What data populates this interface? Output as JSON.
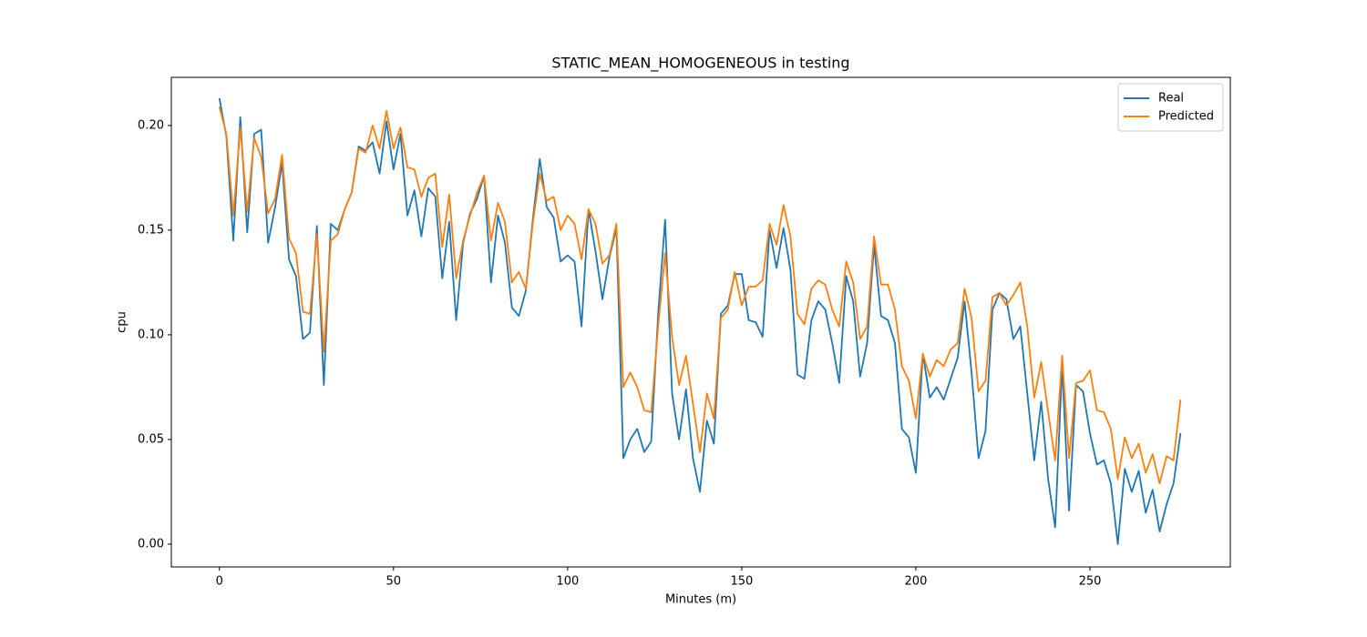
{
  "chart_data": {
    "type": "line",
    "title": "STATIC_MEAN_HOMOGENEOUS in testing",
    "x_label": "Minutes (m)",
    "y_label": "cpu",
    "x": [
      0,
      2,
      4,
      6,
      8,
      10,
      12,
      14,
      16,
      18,
      20,
      22,
      24,
      26,
      28,
      30,
      32,
      34,
      36,
      38,
      40,
      42,
      44,
      46,
      48,
      50,
      52,
      54,
      56,
      58,
      60,
      62,
      64,
      66,
      68,
      70,
      72,
      74,
      76,
      78,
      80,
      82,
      84,
      86,
      88,
      90,
      92,
      94,
      96,
      98,
      100,
      102,
      104,
      106,
      108,
      110,
      112,
      114,
      116,
      118,
      120,
      122,
      124,
      126,
      128,
      130,
      132,
      134,
      136,
      138,
      140,
      142,
      144,
      146,
      148,
      150,
      152,
      154,
      156,
      158,
      160,
      162,
      164,
      166,
      168,
      170,
      172,
      174,
      176,
      178,
      180,
      182,
      184,
      186,
      188,
      190,
      192,
      194,
      196,
      198,
      200,
      202,
      204,
      206,
      208,
      210,
      212,
      214,
      216,
      218,
      220,
      222,
      224,
      226,
      228,
      230,
      232,
      234,
      236,
      238,
      240,
      242,
      244,
      246,
      248,
      250,
      252,
      254,
      256,
      258,
      260,
      262,
      264,
      266,
      268,
      270,
      272,
      274,
      276
    ],
    "series": [
      {
        "name": "Real",
        "color": "#1f77b4",
        "values": [
          0.213,
          0.195,
          0.145,
          0.204,
          0.149,
          0.196,
          0.198,
          0.144,
          0.161,
          0.182,
          0.136,
          0.128,
          0.098,
          0.101,
          0.152,
          0.076,
          0.153,
          0.15,
          0.16,
          0.168,
          0.19,
          0.188,
          0.192,
          0.177,
          0.202,
          0.179,
          0.196,
          0.157,
          0.169,
          0.147,
          0.17,
          0.166,
          0.127,
          0.154,
          0.107,
          0.144,
          0.158,
          0.165,
          0.176,
          0.125,
          0.157,
          0.144,
          0.113,
          0.109,
          0.121,
          0.155,
          0.184,
          0.161,
          0.156,
          0.135,
          0.138,
          0.135,
          0.104,
          0.16,
          0.14,
          0.117,
          0.137,
          0.151,
          0.041,
          0.05,
          0.055,
          0.044,
          0.049,
          0.11,
          0.155,
          0.072,
          0.05,
          0.074,
          0.041,
          0.025,
          0.059,
          0.048,
          0.11,
          0.114,
          0.129,
          0.129,
          0.107,
          0.106,
          0.099,
          0.15,
          0.132,
          0.151,
          0.131,
          0.081,
          0.079,
          0.107,
          0.116,
          0.112,
          0.096,
          0.077,
          0.128,
          0.116,
          0.08,
          0.096,
          0.143,
          0.109,
          0.107,
          0.096,
          0.055,
          0.051,
          0.034,
          0.091,
          0.07,
          0.075,
          0.069,
          0.079,
          0.089,
          0.116,
          0.082,
          0.041,
          0.054,
          0.112,
          0.12,
          0.117,
          0.098,
          0.104,
          0.072,
          0.04,
          0.068,
          0.031,
          0.008,
          0.085,
          0.016,
          0.076,
          0.073,
          0.053,
          0.038,
          0.04,
          0.029,
          0.0,
          0.036,
          0.025,
          0.035,
          0.015,
          0.026,
          0.006,
          0.019,
          0.029,
          0.053
        ]
      },
      {
        "name": "Predicted",
        "color": "#ff7f0e",
        "values": [
          0.209,
          0.196,
          0.157,
          0.199,
          0.159,
          0.194,
          0.185,
          0.158,
          0.165,
          0.186,
          0.146,
          0.139,
          0.111,
          0.11,
          0.148,
          0.092,
          0.145,
          0.148,
          0.16,
          0.168,
          0.189,
          0.187,
          0.2,
          0.189,
          0.207,
          0.189,
          0.199,
          0.18,
          0.179,
          0.166,
          0.175,
          0.177,
          0.142,
          0.167,
          0.127,
          0.145,
          0.157,
          0.168,
          0.176,
          0.145,
          0.163,
          0.154,
          0.125,
          0.13,
          0.122,
          0.153,
          0.177,
          0.164,
          0.166,
          0.15,
          0.157,
          0.153,
          0.136,
          0.16,
          0.153,
          0.134,
          0.138,
          0.153,
          0.075,
          0.082,
          0.075,
          0.064,
          0.063,
          0.104,
          0.139,
          0.099,
          0.076,
          0.09,
          0.067,
          0.044,
          0.072,
          0.06,
          0.108,
          0.112,
          0.13,
          0.114,
          0.123,
          0.123,
          0.126,
          0.153,
          0.143,
          0.162,
          0.147,
          0.11,
          0.105,
          0.122,
          0.126,
          0.124,
          0.112,
          0.104,
          0.135,
          0.125,
          0.098,
          0.104,
          0.147,
          0.124,
          0.124,
          0.112,
          0.085,
          0.078,
          0.06,
          0.091,
          0.08,
          0.088,
          0.085,
          0.093,
          0.096,
          0.122,
          0.108,
          0.073,
          0.078,
          0.118,
          0.12,
          0.114,
          0.119,
          0.125,
          0.104,
          0.07,
          0.087,
          0.063,
          0.04,
          0.09,
          0.041,
          0.077,
          0.078,
          0.083,
          0.064,
          0.063,
          0.055,
          0.031,
          0.051,
          0.041,
          0.048,
          0.034,
          0.043,
          0.029,
          0.042,
          0.04,
          0.069
        ]
      }
    ],
    "xlim": [
      -13.8,
      290.3
    ],
    "ylim": [
      -0.0109,
      0.223
    ],
    "xticks": [
      0,
      50,
      100,
      150,
      200,
      250
    ],
    "yticks": [
      {
        "value": 0,
        "label": "0.00"
      },
      {
        "value": 0.05,
        "label": "0.05"
      },
      {
        "value": 0.1,
        "label": "0.10"
      },
      {
        "value": 0.15,
        "label": "0.15"
      },
      {
        "value": 0.2,
        "label": "0.20"
      }
    ],
    "legend": "upper right",
    "grid": false
  }
}
